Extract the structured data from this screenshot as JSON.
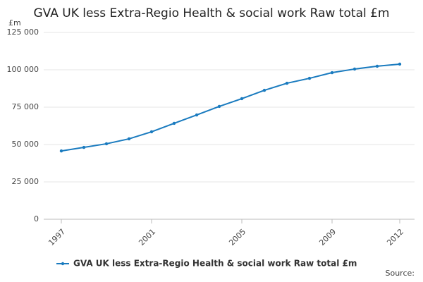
{
  "chart_data": {
    "type": "line",
    "title": "GVA UK less Extra-Regio Health & social work Raw total £m",
    "y_label": "£m",
    "source": "Source:",
    "x": [
      1997,
      1998,
      1999,
      2000,
      2001,
      2002,
      2003,
      2004,
      2005,
      2006,
      2007,
      2008,
      2009,
      2010,
      2011,
      2012
    ],
    "series": [
      {
        "name": "GVA UK less Extra-Regio Health & social work Raw total £m",
        "color": "#1a7bbf",
        "values": [
          45700,
          48100,
          50500,
          53800,
          58500,
          64200,
          69800,
          75500,
          80700,
          86300,
          91000,
          94300,
          98100,
          100500,
          102400,
          103800
        ]
      }
    ],
    "xlim": [
      1997,
      2012
    ],
    "xticks": [
      1997,
      2001,
      2005,
      2009,
      2012
    ],
    "ylim": [
      0,
      125000
    ],
    "yticks": [
      0,
      {
        "value": 25000,
        "label": "25 000"
      },
      {
        "value": 50000,
        "label": "50 000"
      },
      {
        "value": 75000,
        "label": "75 000"
      },
      {
        "value": 100000,
        "label": "100 000"
      },
      {
        "value": 125000,
        "label": "125 000"
      }
    ],
    "grid": true
  }
}
